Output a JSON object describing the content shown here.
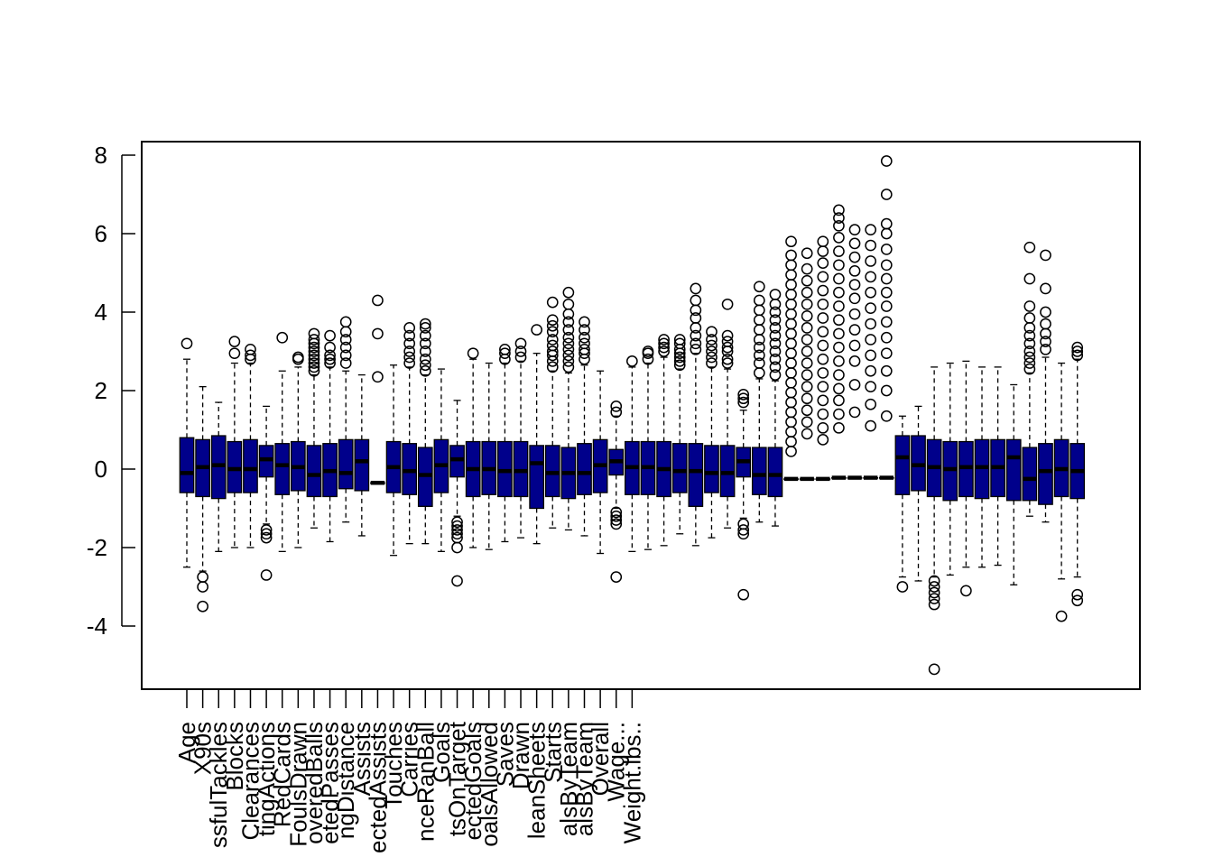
{
  "chart_data": {
    "type": "box",
    "title": "",
    "xlabel": "",
    "ylabel": "",
    "ylim": [
      -5.5,
      8.3
    ],
    "yticks": [
      -4,
      -2,
      0,
      2,
      4,
      6,
      8
    ],
    "grid": false,
    "box_color": "#00008B",
    "categories": [
      "Age",
      "X90s",
      "SuccessfulTackles",
      "Blocks",
      "Clearances",
      "ShotCreatingActions",
      "RedCards",
      "FoulsDrawn",
      "RecoveredBalls",
      "CompletedPasses",
      "PassingDistance",
      "Assists",
      "ExpectedAssists",
      "Touches",
      "Carries",
      "DistanceRanBall",
      "Goals",
      "ShotsOnTarget",
      "ExpectedGoals",
      "GoalsAllowed",
      "Saves",
      "Drawn",
      "CleanSheets",
      "Starts",
      "GoalsByTeam",
      "GoalsByTeam",
      "Overall",
      "Wage...",
      "Weight.lbs.."
    ],
    "tick_labels": [
      "Age",
      "X90s",
      "ssfulTackles",
      "Blocks",
      "Clearances",
      "tingActions",
      "RedCards",
      "FoulsDrawn",
      "overedBalls",
      "etedPasses",
      "ngDistance",
      "Assists",
      "ectedAssists",
      "Touches",
      "Carries",
      "nceRanBall",
      "Goals",
      "tsOnTarget",
      "ectedGoals",
      "oalsAllowed",
      "Saves",
      "Drawn",
      "leanSheets",
      "Starts",
      "alsByTeam",
      "alsByTeam",
      "Overall",
      "Wage...",
      "Weight.lbs.."
    ],
    "boxes": [
      {
        "q1": -0.6,
        "median": -0.1,
        "q3": 0.8,
        "wl": -2.5,
        "wh": 2.8,
        "outliers": [
          3.2
        ]
      },
      {
        "q1": -0.7,
        "median": 0.05,
        "q3": 0.75,
        "wl": -2.6,
        "wh": 2.1,
        "outliers": [
          -2.75,
          -3.0,
          -3.5
        ]
      },
      {
        "q1": -0.75,
        "median": 0.1,
        "q3": 0.85,
        "wl": -2.1,
        "wh": 1.7,
        "outliers": []
      },
      {
        "q1": -0.6,
        "median": 0.0,
        "q3": 0.7,
        "wl": -2.0,
        "wh": 2.7,
        "outliers": [
          2.95,
          3.25
        ]
      },
      {
        "q1": -0.6,
        "median": 0.0,
        "q3": 0.75,
        "wl": -2.0,
        "wh": 2.7,
        "outliers": [
          2.8,
          3.05,
          2.9
        ]
      },
      {
        "q1": -0.2,
        "median": 0.25,
        "q3": 0.6,
        "wl": -1.4,
        "wh": 1.6,
        "outliers": [
          -1.55,
          -1.75,
          -1.65,
          -2.7
        ]
      },
      {
        "q1": -0.65,
        "median": 0.1,
        "q3": 0.65,
        "wl": -2.1,
        "wh": 2.5,
        "outliers": [
          3.35
        ]
      },
      {
        "q1": -0.55,
        "median": 0.05,
        "q3": 0.7,
        "wl": -2.0,
        "wh": 2.6,
        "outliers": [
          2.8,
          2.85
        ]
      },
      {
        "q1": -0.7,
        "median": -0.15,
        "q3": 0.6,
        "wl": -1.5,
        "wh": 2.4,
        "outliers": [
          2.5,
          2.6,
          2.7,
          2.8,
          2.9,
          3.0,
          3.1,
          3.2,
          3.3,
          3.45
        ]
      },
      {
        "q1": -0.7,
        "median": -0.05,
        "q3": 0.65,
        "wl": -1.85,
        "wh": 2.6,
        "outliers": [
          2.7,
          2.8,
          2.9,
          3.1,
          3.4
        ]
      },
      {
        "q1": -0.5,
        "median": -0.1,
        "q3": 0.75,
        "wl": -1.35,
        "wh": 2.5,
        "outliers": [
          2.7,
          2.9,
          3.1,
          3.3,
          3.5,
          3.75
        ]
      },
      {
        "q1": -0.55,
        "median": 0.2,
        "q3": 0.75,
        "wl": -1.7,
        "wh": 2.4,
        "outliers": []
      },
      {
        "q1": -0.35,
        "median": -0.35,
        "q3": -0.35,
        "wl": -0.35,
        "wh": -0.35,
        "outliers": [
          2.35,
          3.45,
          4.3
        ]
      },
      {
        "q1": -0.6,
        "median": 0.05,
        "q3": 0.7,
        "wl": -2.2,
        "wh": 2.65,
        "outliers": []
      },
      {
        "q1": -0.65,
        "median": -0.05,
        "q3": 0.65,
        "wl": -1.9,
        "wh": 2.6,
        "outliers": [
          2.7,
          2.85,
          3.0,
          3.2,
          3.4,
          3.6
        ]
      },
      {
        "q1": -0.95,
        "median": -0.15,
        "q3": 0.55,
        "wl": -1.9,
        "wh": 2.4,
        "outliers": [
          2.5,
          2.65,
          2.8,
          3.0,
          3.2,
          3.4,
          3.6,
          3.7
        ]
      },
      {
        "q1": -0.6,
        "median": 0.1,
        "q3": 0.75,
        "wl": -2.1,
        "wh": 2.55,
        "outliers": []
      },
      {
        "q1": -0.2,
        "median": 0.25,
        "q3": 0.6,
        "wl": -1.2,
        "wh": 1.75,
        "outliers": [
          -1.35,
          -1.45,
          -1.55,
          -1.65,
          -1.75,
          -2.0,
          -2.85
        ]
      },
      {
        "q1": -0.7,
        "median": 0.0,
        "q3": 0.7,
        "wl": -2.0,
        "wh": 2.8,
        "outliers": [
          2.95
        ]
      },
      {
        "q1": -0.65,
        "median": 0.0,
        "q3": 0.7,
        "wl": -2.05,
        "wh": 2.7,
        "outliers": []
      },
      {
        "q1": -0.7,
        "median": -0.05,
        "q3": 0.7,
        "wl": -1.85,
        "wh": 2.7,
        "outliers": [
          2.8,
          2.95,
          3.05
        ]
      },
      {
        "q1": -0.7,
        "median": -0.05,
        "q3": 0.7,
        "wl": -1.75,
        "wh": 2.75,
        "outliers": [
          2.85,
          3.0,
          3.2
        ]
      },
      {
        "q1": -1.0,
        "median": 0.15,
        "q3": 0.6,
        "wl": -1.9,
        "wh": 2.95,
        "outliers": [
          3.55
        ]
      },
      {
        "q1": -0.7,
        "median": -0.1,
        "q3": 0.6,
        "wl": -1.5,
        "wh": 2.5,
        "outliers": [
          2.6,
          2.75,
          2.9,
          3.0,
          3.15,
          3.3,
          3.5,
          3.65,
          3.8,
          4.25
        ]
      },
      {
        "q1": -0.75,
        "median": -0.1,
        "q3": 0.55,
        "wl": -1.55,
        "wh": 2.45,
        "outliers": [
          2.6,
          2.75,
          2.9,
          3.05,
          3.2,
          3.35,
          3.55,
          3.75,
          3.95,
          4.2,
          4.5
        ]
      },
      {
        "q1": -0.65,
        "median": -0.1,
        "q3": 0.65,
        "wl": -1.7,
        "wh": 2.65,
        "outliers": [
          2.8,
          2.95,
          3.05,
          3.2,
          3.35,
          3.55,
          3.75
        ]
      },
      {
        "q1": -0.6,
        "median": 0.1,
        "q3": 0.75,
        "wl": -2.15,
        "wh": 2.5,
        "outliers": []
      },
      {
        "q1": -0.15,
        "median": 0.2,
        "q3": 0.5,
        "wl": -1.0,
        "wh": 1.35,
        "outliers": [
          -1.1,
          -1.2,
          -1.3,
          -1.4,
          -2.75,
          1.45,
          1.6
        ]
      },
      {
        "q1": -0.65,
        "median": 0.05,
        "q3": 0.7,
        "wl": -2.1,
        "wh": 2.6,
        "outliers": [
          2.75
        ]
      },
      {
        "q1": -0.65,
        "median": 0.05,
        "q3": 0.7,
        "wl": -2.05,
        "wh": 2.7,
        "outliers": [
          2.8,
          2.95,
          3.0
        ]
      },
      {
        "q1": -0.7,
        "median": 0.0,
        "q3": 0.7,
        "wl": -1.95,
        "wh": 2.85,
        "outliers": [
          3.0,
          3.1,
          3.2,
          3.3
        ]
      },
      {
        "q1": -0.6,
        "median": -0.05,
        "q3": 0.65,
        "wl": -1.65,
        "wh": 2.55,
        "outliers": [
          2.65,
          2.75,
          2.85,
          2.95,
          3.05,
          3.2,
          3.3
        ]
      },
      {
        "q1": -0.95,
        "median": -0.05,
        "q3": 0.65,
        "wl": -1.95,
        "wh": 2.95,
        "outliers": [
          3.05,
          3.2,
          3.4,
          3.6,
          3.85,
          4.05,
          4.3,
          4.6
        ]
      },
      {
        "q1": -0.6,
        "median": -0.1,
        "q3": 0.6,
        "wl": -1.75,
        "wh": 2.6,
        "outliers": [
          2.7,
          2.85,
          3.0,
          3.15,
          3.3,
          3.5
        ]
      },
      {
        "q1": -0.7,
        "median": -0.1,
        "q3": 0.6,
        "wl": -1.5,
        "wh": 2.55,
        "outliers": [
          2.7,
          2.8,
          3.0,
          3.1,
          3.25,
          3.4,
          4.2
        ]
      },
      {
        "q1": -0.2,
        "median": 0.2,
        "q3": 0.55,
        "wl": -1.25,
        "wh": 1.5,
        "outliers": [
          -1.4,
          -1.55,
          -1.65,
          -3.2,
          1.7,
          1.8,
          1.9
        ]
      },
      {
        "q1": -0.65,
        "median": -0.15,
        "q3": 0.55,
        "wl": -1.35,
        "wh": 2.3,
        "outliers": [
          2.45,
          2.7,
          2.9,
          3.1,
          3.3,
          3.55,
          3.8,
          4.05,
          4.3,
          4.65
        ]
      },
      {
        "q1": -0.7,
        "median": -0.15,
        "q3": 0.55,
        "wl": -1.45,
        "wh": 2.25,
        "outliers": [
          2.4,
          2.6,
          2.8,
          3.0,
          3.2,
          3.4,
          3.6,
          3.8,
          4.0,
          4.2,
          4.45
        ]
      },
      {
        "q1": -0.25,
        "median": -0.25,
        "q3": -0.25,
        "wl": -0.25,
        "wh": -0.25,
        "outliers": [
          0.45,
          0.7,
          0.95,
          1.2,
          1.45,
          1.7,
          1.95,
          2.2,
          2.45,
          2.7,
          2.95,
          3.2,
          3.45,
          3.7,
          3.95,
          4.2,
          4.45,
          4.7,
          4.95,
          5.2,
          5.45,
          5.8
        ]
      },
      {
        "q1": -0.25,
        "median": -0.25,
        "q3": -0.25,
        "wl": -0.25,
        "wh": -0.25,
        "outliers": [
          0.9,
          1.2,
          1.5,
          1.8,
          2.1,
          2.4,
          2.7,
          3.0,
          3.3,
          3.6,
          3.9,
          4.2,
          4.5,
          4.8,
          5.1,
          5.5
        ]
      },
      {
        "q1": -0.25,
        "median": -0.25,
        "q3": -0.25,
        "wl": -0.25,
        "wh": -0.25,
        "outliers": [
          0.75,
          1.05,
          1.4,
          1.75,
          2.1,
          2.45,
          2.8,
          3.15,
          3.5,
          3.85,
          4.2,
          4.55,
          4.9,
          5.25,
          5.55,
          5.8
        ]
      },
      {
        "q1": -0.22,
        "median": -0.22,
        "q3": -0.22,
        "wl": -0.22,
        "wh": -0.22,
        "outliers": [
          1.05,
          1.4,
          1.75,
          2.05,
          2.4,
          2.75,
          3.1,
          3.45,
          3.8,
          4.15,
          4.5,
          4.85,
          5.2,
          5.55,
          5.9,
          6.2,
          6.4,
          6.6
        ]
      },
      {
        "q1": -0.22,
        "median": -0.22,
        "q3": -0.22,
        "wl": -0.22,
        "wh": -0.22,
        "outliers": [
          1.45,
          2.15,
          2.75,
          3.15,
          3.55,
          3.95,
          4.35,
          4.7,
          5.05,
          5.4,
          5.75,
          6.1
        ]
      },
      {
        "q1": -0.22,
        "median": -0.22,
        "q3": -0.22,
        "wl": -0.22,
        "wh": -0.22,
        "outliers": [
          1.1,
          1.65,
          2.1,
          2.5,
          2.9,
          3.3,
          3.7,
          4.1,
          4.5,
          4.9,
          5.3,
          5.7,
          6.1
        ]
      },
      {
        "q1": -0.22,
        "median": -0.22,
        "q3": -0.22,
        "wl": -0.22,
        "wh": -0.22,
        "outliers": [
          1.35,
          2.0,
          2.5,
          2.95,
          3.35,
          3.75,
          4.15,
          4.5,
          4.85,
          5.2,
          5.6,
          6.0,
          6.25,
          7.0,
          7.85
        ]
      },
      {
        "q1": -0.65,
        "median": 0.3,
        "q3": 0.85,
        "wl": -2.75,
        "wh": 1.35,
        "outliers": [
          -3.0
        ]
      },
      {
        "q1": -0.55,
        "median": 0.1,
        "q3": 0.85,
        "wl": -2.85,
        "wh": 1.6,
        "outliers": []
      },
      {
        "q1": -0.7,
        "median": 0.05,
        "q3": 0.75,
        "wl": -2.75,
        "wh": 2.6,
        "outliers": [
          -2.85,
          -3.0,
          -3.15,
          -3.3,
          -3.45,
          -5.1
        ]
      },
      {
        "q1": -0.8,
        "median": 0.0,
        "q3": 0.7,
        "wl": -2.7,
        "wh": 2.7,
        "outliers": []
      },
      {
        "q1": -0.7,
        "median": 0.05,
        "q3": 0.7,
        "wl": -2.5,
        "wh": 2.75,
        "outliers": [
          -3.1
        ]
      },
      {
        "q1": -0.75,
        "median": 0.05,
        "q3": 0.75,
        "wl": -2.5,
        "wh": 2.6,
        "outliers": []
      },
      {
        "q1": -0.7,
        "median": 0.05,
        "q3": 0.75,
        "wl": -2.45,
        "wh": 2.6,
        "outliers": []
      },
      {
        "q1": -0.8,
        "median": 0.3,
        "q3": 0.75,
        "wl": -2.95,
        "wh": 2.15,
        "outliers": []
      },
      {
        "q1": -0.8,
        "median": -0.25,
        "q3": 0.55,
        "wl": -1.2,
        "wh": 2.45,
        "outliers": [
          2.55,
          2.7,
          2.85,
          3.0,
          3.2,
          3.4,
          3.6,
          3.85,
          4.15,
          4.85,
          5.65
        ]
      },
      {
        "q1": -0.9,
        "median": -0.05,
        "q3": 0.65,
        "wl": -1.35,
        "wh": 2.85,
        "outliers": [
          3.05,
          3.25,
          3.45,
          3.7,
          4.0,
          4.6,
          5.45
        ]
      },
      {
        "q1": -0.7,
        "median": 0.0,
        "q3": 0.75,
        "wl": -2.8,
        "wh": 2.7,
        "outliers": [
          -3.75
        ]
      },
      {
        "q1": -0.75,
        "median": -0.05,
        "q3": 0.65,
        "wl": -2.75,
        "wh": 2.8,
        "outliers": [
          -3.2,
          -3.35,
          2.9,
          3.0,
          3.1
        ]
      }
    ]
  }
}
